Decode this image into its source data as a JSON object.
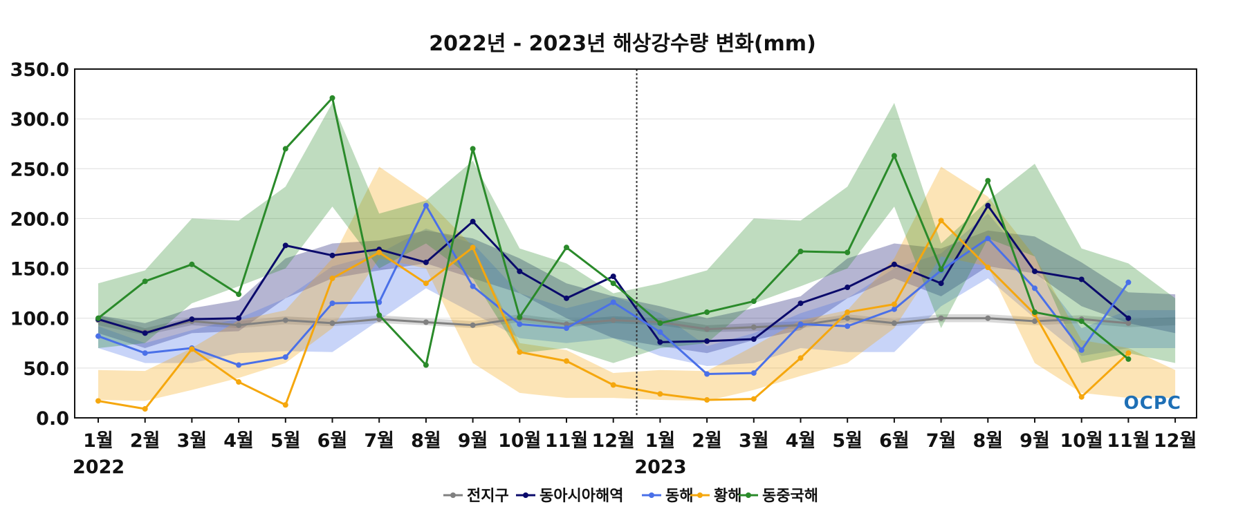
{
  "chart_data": {
    "type": "line",
    "title": "2022년 - 2023년 해상강수량 변화(mm)",
    "ylim": [
      0,
      350
    ],
    "yticks": [
      "0.0",
      "50.0",
      "100.0",
      "150.0",
      "200.0",
      "250.0",
      "300.0",
      "350.0"
    ],
    "categories": [
      "1월",
      "2월",
      "3월",
      "4월",
      "5월",
      "6월",
      "7월",
      "8월",
      "9월",
      "10월",
      "11월",
      "12월",
      "1월",
      "2월",
      "3월",
      "4월",
      "5월",
      "6월",
      "7월",
      "8월",
      "9월",
      "10월",
      "11월",
      "12월"
    ],
    "year_labels": [
      {
        "label": "2022",
        "index": 0
      },
      {
        "label": "2023",
        "index": 12
      }
    ],
    "divider_between_index": 11,
    "grid": true,
    "legend_position": "bottom",
    "logo": "OCPC",
    "series": [
      {
        "name": "전지구",
        "color": "#808080",
        "values": [
          98,
          86,
          97,
          93,
          98,
          95,
          99,
          96,
          93,
          100,
          94,
          98,
          96,
          89,
          91,
          93,
          100,
          95,
          100,
          100,
          97,
          99,
          95,
          null
        ],
        "band": [
          [
            93,
            103
          ],
          [
            83,
            90
          ],
          [
            93,
            101
          ],
          [
            90,
            97
          ],
          [
            94,
            102
          ],
          [
            92,
            99
          ],
          [
            95,
            103
          ],
          [
            93,
            100
          ],
          [
            90,
            97
          ],
          [
            96,
            104
          ],
          [
            91,
            98
          ],
          [
            95,
            102
          ],
          [
            93,
            100
          ],
          [
            86,
            93
          ],
          [
            87,
            95
          ],
          [
            90,
            97
          ],
          [
            96,
            104
          ],
          [
            92,
            99
          ],
          [
            96,
            104
          ],
          [
            96,
            104
          ],
          [
            93,
            101
          ],
          [
            95,
            103
          ],
          [
            91,
            99
          ],
          [
            93,
            101
          ]
        ]
      },
      {
        "name": "동아시아해역",
        "color": "#0a0a6b",
        "values": [
          99,
          85,
          99,
          100,
          173,
          163,
          169,
          156,
          197,
          147,
          120,
          142,
          76,
          77,
          79,
          115,
          131,
          154,
          135,
          213,
          147,
          139,
          100,
          null
        ],
        "band": [
          [
            85,
            103
          ],
          [
            70,
            95
          ],
          [
            85,
            110
          ],
          [
            87,
            118
          ],
          [
            120,
            160
          ],
          [
            140,
            175
          ],
          [
            148,
            178
          ],
          [
            155,
            188
          ],
          [
            140,
            180
          ],
          [
            125,
            160
          ],
          [
            100,
            135
          ],
          [
            80,
            122
          ],
          [
            72,
            112
          ],
          [
            65,
            100
          ],
          [
            78,
            110
          ],
          [
            88,
            122
          ],
          [
            120,
            160
          ],
          [
            140,
            175
          ],
          [
            122,
            170
          ],
          [
            152,
            188
          ],
          [
            145,
            182
          ],
          [
            112,
            156
          ],
          [
            95,
            126
          ],
          [
            85,
            124
          ]
        ]
      },
      {
        "name": "동해",
        "color": "#4a70e8",
        "values": [
          82,
          65,
          70,
          53,
          61,
          115,
          116,
          213,
          132,
          94,
          90,
          116,
          86,
          44,
          45,
          94,
          92,
          109,
          148,
          180,
          130,
          68,
          136,
          null
        ],
        "band": [
          [
            70,
            92
          ],
          [
            55,
            75
          ],
          [
            55,
            88
          ],
          [
            65,
            100
          ],
          [
            67,
            120
          ],
          [
            66,
            152
          ],
          [
            98,
            165
          ],
          [
            130,
            190
          ],
          [
            105,
            175
          ],
          [
            80,
            125
          ],
          [
            75,
            110
          ],
          [
            80,
            122
          ],
          [
            62,
            105
          ],
          [
            52,
            72
          ],
          [
            55,
            85
          ],
          [
            70,
            105
          ],
          [
            66,
            120
          ],
          [
            66,
            150
          ],
          [
            112,
            165
          ],
          [
            140,
            205
          ],
          [
            100,
            150
          ],
          [
            62,
            90
          ],
          [
            70,
            108
          ],
          [
            70,
            108
          ]
        ]
      },
      {
        "name": "황해",
        "color": "#f5a70e",
        "values": [
          17,
          9,
          69,
          36,
          13,
          140,
          166,
          135,
          171,
          66,
          57,
          33,
          24,
          18,
          19,
          60,
          106,
          114,
          198,
          151,
          104,
          21,
          65,
          null
        ],
        "band": [
          [
            18,
            48
          ],
          [
            17,
            47
          ],
          [
            28,
            70
          ],
          [
            40,
            98
          ],
          [
            55,
            108
          ],
          [
            90,
            160
          ],
          [
            160,
            252
          ],
          [
            150,
            220
          ],
          [
            55,
            172
          ],
          [
            25,
            75
          ],
          [
            20,
            68
          ],
          [
            20,
            45
          ],
          [
            18,
            48
          ],
          [
            17,
            47
          ],
          [
            28,
            72
          ],
          [
            42,
            98
          ],
          [
            55,
            108
          ],
          [
            90,
            160
          ],
          [
            162,
            252
          ],
          [
            152,
            222
          ],
          [
            55,
            162
          ],
          [
            25,
            78
          ],
          [
            20,
            70
          ],
          [
            20,
            48
          ]
        ]
      },
      {
        "name": "동중국해",
        "color": "#2a8a2a",
        "values": [
          100,
          137,
          154,
          124,
          270,
          321,
          103,
          53,
          270,
          101,
          171,
          135,
          95,
          106,
          117,
          167,
          166,
          263,
          149,
          238,
          106,
          97,
          59,
          null
        ],
        "band": [
          [
            70,
            135
          ],
          [
            75,
            148
          ],
          [
            115,
            200
          ],
          [
            132,
            198
          ],
          [
            150,
            232
          ],
          [
            212,
            316
          ],
          [
            150,
            205
          ],
          [
            175,
            218
          ],
          [
            140,
            258
          ],
          [
            65,
            170
          ],
          [
            70,
            155
          ],
          [
            55,
            125
          ],
          [
            70,
            135
          ],
          [
            75,
            148
          ],
          [
            115,
            200
          ],
          [
            132,
            198
          ],
          [
            150,
            232
          ],
          [
            212,
            316
          ],
          [
            90,
            175
          ],
          [
            180,
            218
          ],
          [
            162,
            255
          ],
          [
            55,
            170
          ],
          [
            65,
            155
          ],
          [
            55,
            120
          ]
        ]
      }
    ]
  }
}
